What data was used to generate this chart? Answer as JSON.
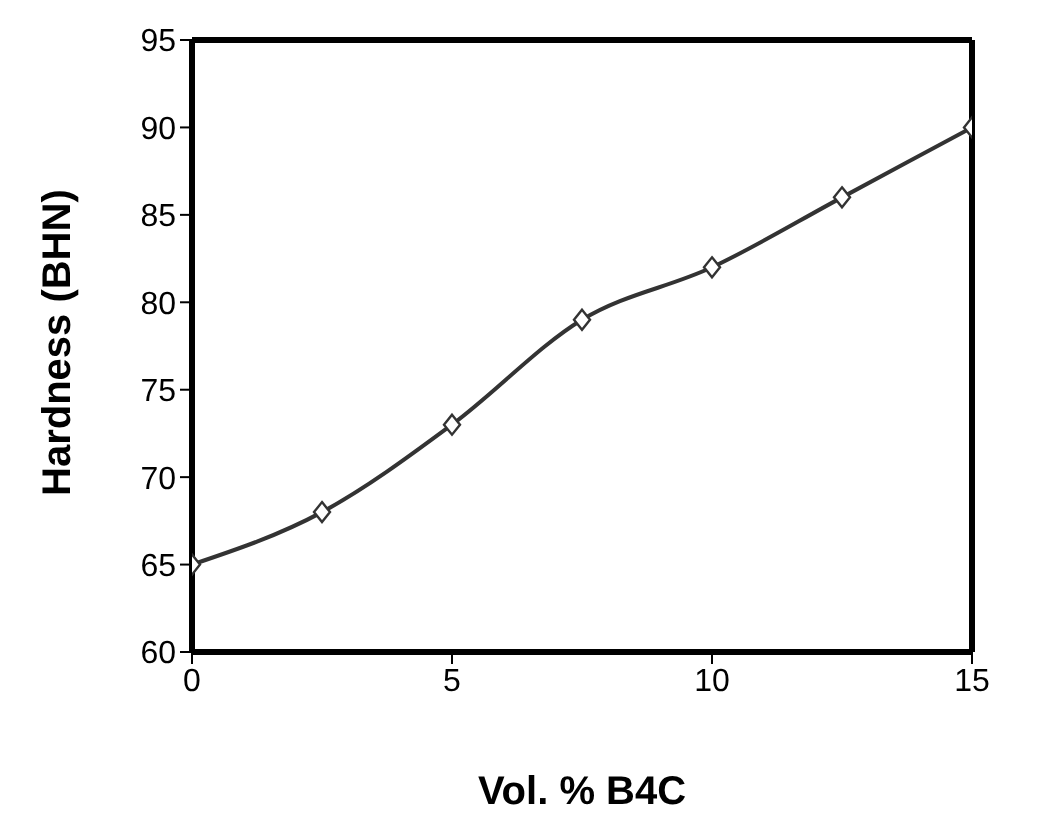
{
  "chart_data": {
    "type": "line",
    "xlabel": "Vol. % B4C",
    "ylabel": "Hardness (BHN)",
    "x": [
      0,
      2.5,
      5,
      7.5,
      10,
      12.5,
      15
    ],
    "series": [
      {
        "color": "#333333",
        "values": [
          65,
          68,
          73,
          79,
          82,
          86,
          90
        ]
      }
    ],
    "xlim": [
      0,
      15
    ],
    "xticks": [
      0,
      5,
      10,
      15
    ],
    "ylim": [
      60,
      95
    ],
    "yticks": [
      60,
      65,
      70,
      75,
      80,
      85,
      90,
      95
    ],
    "marker": "diamond",
    "grid": false,
    "legend": false
  }
}
